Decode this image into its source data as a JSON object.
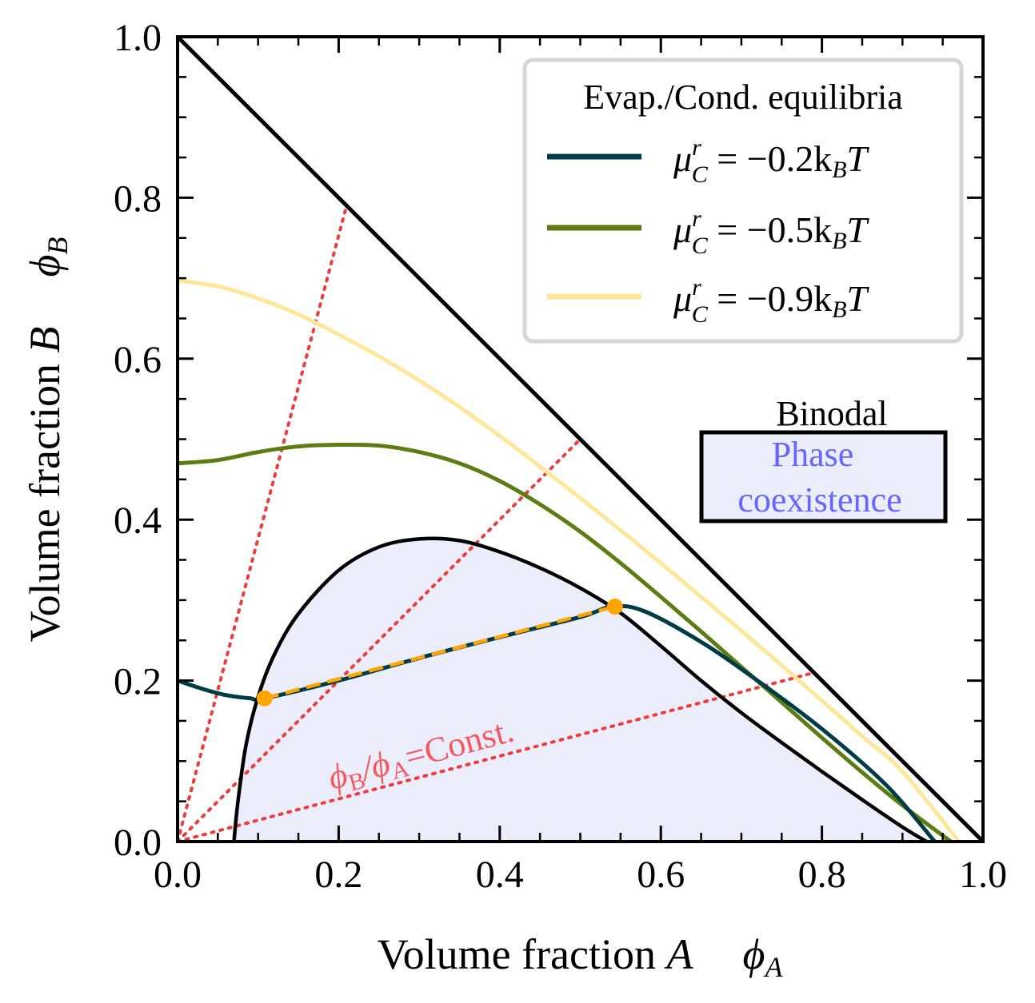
{
  "chart_data": {
    "type": "line",
    "title": "",
    "xlabel": "Volume fraction",
    "xlabel_var": "A",
    "xlabel_symbol": "ϕ",
    "xlabel_symbol_sub": "A",
    "ylabel": "Volume fraction",
    "ylabel_var": "B",
    "ylabel_symbol": "ϕ",
    "ylabel_symbol_sub": "B",
    "xlim": [
      0.0,
      1.0
    ],
    "ylim": [
      0.0,
      1.0
    ],
    "xticks": [
      0.0,
      0.2,
      0.4,
      0.6,
      0.8,
      1.0
    ],
    "xtick_labels": [
      "0.0",
      "0.2",
      "0.4",
      "0.6",
      "0.8",
      "1.0"
    ],
    "yticks": [
      0.0,
      0.2,
      0.4,
      0.6,
      0.8,
      1.0
    ],
    "ytick_labels": [
      "0.0",
      "0.2",
      "0.4",
      "0.6",
      "0.8",
      "1.0"
    ],
    "legend": {
      "title": "Evap./Cond. equilibria",
      "placement": "top-right"
    },
    "series": [
      {
        "name": "μ_C^r = −0.2 k_B T",
        "label_mu": "μ",
        "label_sup": "r",
        "label_sub": "C",
        "label_rest": " = −0.2k",
        "label_kb_sub": "B",
        "label_T": "T",
        "color": "#003c46",
        "x": [
          0.0,
          0.03,
          0.06,
          0.09,
          0.108,
          0.2,
          0.3,
          0.4,
          0.5,
          0.54,
          0.58,
          0.65,
          0.72,
          0.8,
          0.88,
          0.94
        ],
        "y": [
          0.2,
          0.19,
          0.182,
          0.178,
          0.178,
          0.2,
          0.228,
          0.254,
          0.279,
          0.292,
          0.286,
          0.248,
          0.2,
          0.14,
          0.07,
          0.0
        ]
      },
      {
        "name": "μ_C^r = −0.5 k_B T",
        "label_mu": "μ",
        "label_sup": "r",
        "label_sub": "C",
        "label_rest": " = −0.5k",
        "label_kb_sub": "B",
        "label_T": "T",
        "color": "#5c7d12",
        "x": [
          0.0,
          0.05,
          0.1,
          0.15,
          0.2,
          0.25,
          0.3,
          0.35,
          0.4,
          0.45,
          0.5,
          0.55,
          0.6,
          0.65,
          0.7,
          0.75,
          0.8,
          0.85,
          0.9,
          0.96
        ],
        "y": [
          0.47,
          0.474,
          0.484,
          0.491,
          0.493,
          0.492,
          0.484,
          0.47,
          0.448,
          0.419,
          0.385,
          0.346,
          0.304,
          0.261,
          0.217,
          0.173,
          0.129,
          0.086,
          0.045,
          0.0
        ]
      },
      {
        "name": "μ_C^r = −0.9 k_B T",
        "label_mu": "μ",
        "label_sup": "r",
        "label_sub": "C",
        "label_rest": " = −0.9k",
        "label_kb_sub": "B",
        "label_T": "T",
        "color": "#ffe79a",
        "x": [
          0.0,
          0.05,
          0.1,
          0.15,
          0.2,
          0.25,
          0.3,
          0.35,
          0.4,
          0.45,
          0.5,
          0.55,
          0.6,
          0.65,
          0.7,
          0.75,
          0.8,
          0.85,
          0.9,
          0.97
        ],
        "y": [
          0.697,
          0.69,
          0.675,
          0.655,
          0.63,
          0.603,
          0.573,
          0.54,
          0.504,
          0.466,
          0.427,
          0.387,
          0.346,
          0.304,
          0.262,
          0.219,
          0.175,
          0.131,
          0.087,
          0.0
        ]
      }
    ],
    "boundary": {
      "name": "Simplex boundary",
      "x": [
        0.0,
        1.0
      ],
      "y": [
        1.0,
        0.0
      ],
      "color": "#000000"
    },
    "binodal": {
      "name": "Binodal",
      "legend_title": "Binodal",
      "legend_line1": "Phase",
      "legend_line2": "coexistence",
      "text_color": "#6666ff",
      "fill_color": "#ecedfb",
      "x": [
        0.07,
        0.075,
        0.085,
        0.1,
        0.12,
        0.15,
        0.2,
        0.25,
        0.3,
        0.35,
        0.4,
        0.45,
        0.5,
        0.55,
        0.6,
        0.65,
        0.7,
        0.75,
        0.8,
        0.85,
        0.9,
        0.93
      ],
      "y": [
        0.0,
        0.05,
        0.12,
        0.18,
        0.232,
        0.283,
        0.337,
        0.366,
        0.376,
        0.374,
        0.36,
        0.34,
        0.315,
        0.284,
        0.243,
        0.2,
        0.16,
        0.123,
        0.087,
        0.052,
        0.018,
        0.0
      ]
    },
    "tie_line": {
      "name": "Tie line",
      "color": "#ffa500",
      "points": [
        {
          "x": 0.108,
          "y": 0.178
        },
        {
          "x": 0.543,
          "y": 0.292
        }
      ]
    },
    "constant_ratio_lines": {
      "color": "#ef3b3b",
      "lines": [
        {
          "x": [
            0.0,
            0.209
          ],
          "y": [
            0.0,
            0.787
          ]
        },
        {
          "x": [
            0.0,
            0.5
          ],
          "y": [
            0.0,
            0.5
          ]
        },
        {
          "x": [
            0.0,
            0.787
          ],
          "y": [
            0.0,
            0.209
          ]
        }
      ]
    },
    "annotations": [
      {
        "id": "ratio",
        "phi1": "ϕ",
        "sub1": "B",
        "sep": "/",
        "phi2": "ϕ",
        "sub2": "A",
        "rest": "=Const.",
        "color": "#f25a5f"
      }
    ]
  }
}
